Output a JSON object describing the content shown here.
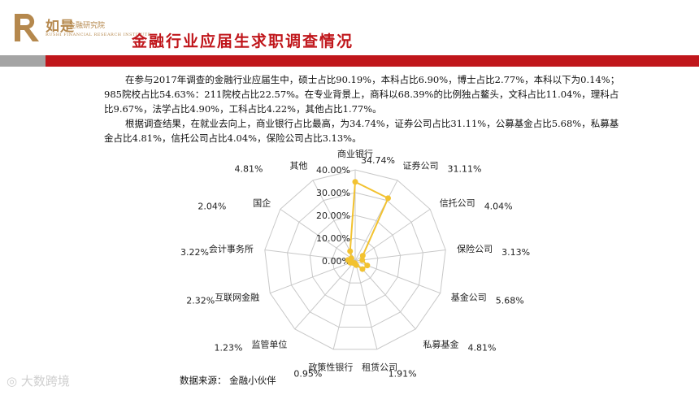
{
  "header": {
    "logo_name": "如是",
    "logo_sub": "金融研究院",
    "logo_en": "RUSHI FINANCIAL RESEARCH INSTITUTE",
    "title": "金融行业应届生求职调查情况"
  },
  "body": {
    "para1": "在参与2017年调查的金融行业应届生中，硕士占比90.19%，本科占比6.90%，博士占比2.77%，本科以下为0.14%；985院校占比54.63%：211院校占比22.57%。在专业背景上，商科以68.39%的比例独占鳌头，文科占比11.04%，理科占比9.67%，法学占比4.90%，工科占比4.22%，其他占比1.77%。",
    "para2": "根据调查结果，在就业去向上，商业银行占比最高，为34.74%，证券公司占比31.11%，公募基金占比5.68%，私募基金占比4.81%，信托公司占比4.04%，保险公司占比3.13%。"
  },
  "source": "数据来源：  金融小伙伴",
  "watermark": "大数跨境",
  "colors": {
    "accent_red": "#c0161b",
    "series": "#f2c230",
    "grid": "#c8c8c8",
    "logo": "#b5884d"
  },
  "chart_data": {
    "type": "radar",
    "categories": [
      "商业银行",
      "证券公司",
      "信托公司",
      "保险公司",
      "基金公司",
      "私募基金",
      "租赁公司",
      "政策性银行",
      "监管单位",
      "互联网金融",
      "会计事务所",
      "国企",
      "其他"
    ],
    "values": [
      34.74,
      31.11,
      4.04,
      3.13,
      5.68,
      4.81,
      1.91,
      0.95,
      1.23,
      2.32,
      3.22,
      2.04,
      4.81
    ],
    "value_labels": [
      "34.74%",
      "31.11%",
      "4.04%",
      "3.13%",
      "5.68%",
      "4.81%",
      "1.91%",
      "0.95%",
      "1.23%",
      "2.32%",
      "3.22%",
      "2.04%",
      "4.81%"
    ],
    "rticks": [
      "0.00%",
      "10.00%",
      "20.00%",
      "30.00%",
      "40.00%"
    ],
    "rlim": [
      0,
      40
    ],
    "grid": true
  }
}
